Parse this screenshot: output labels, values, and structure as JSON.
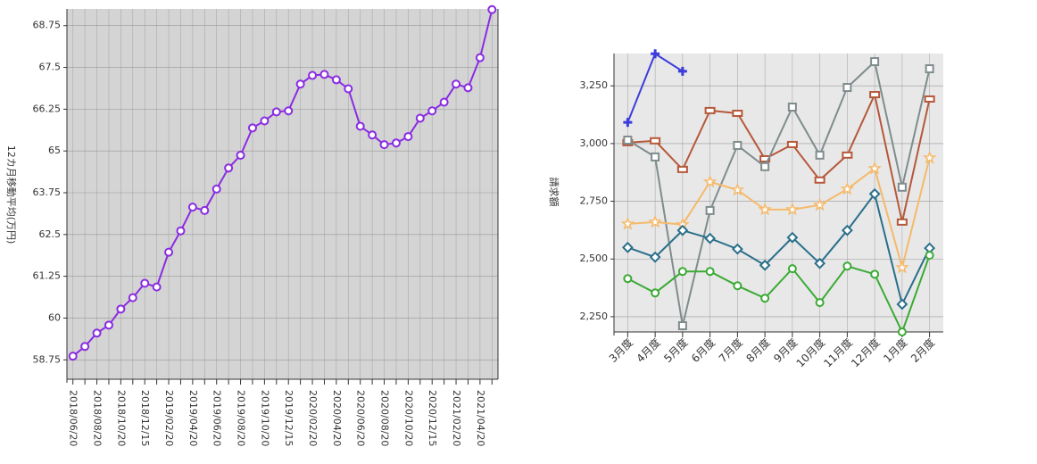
{
  "chart_data": [
    {
      "type": "line",
      "y_label": "12カ月移動平均(万円)",
      "categories": [
        "2018/06/20",
        null,
        "2018/08/20",
        null,
        "2018/10/20",
        null,
        "2018/12/15",
        null,
        "2019/02/20",
        null,
        "2019/04/20",
        null,
        "2019/06/20",
        null,
        "2019/08/20",
        null,
        "2019/10/20",
        null,
        "2019/12/15",
        null,
        "2020/02/20",
        null,
        "2020/04/20",
        null,
        "2020/06/20",
        null,
        "2020/08/20",
        null,
        "2020/10/20",
        null,
        "2020/12/15",
        null,
        "2021/02/20",
        null,
        "2021/04/20",
        null
      ],
      "series": [
        {
          "color": "#8a2be2",
          "marker": "circle",
          "values": [
            58.86,
            59.15,
            59.55,
            59.79,
            60.27,
            60.61,
            61.04,
            60.93,
            61.97,
            62.61,
            63.32,
            63.22,
            63.86,
            64.49,
            64.87,
            65.69,
            65.9,
            66.17,
            66.2,
            67.0,
            67.26,
            67.29,
            67.13,
            66.86,
            65.74,
            65.48,
            65.19,
            65.24,
            65.43,
            65.98,
            66.2,
            66.46,
            67.0,
            66.89,
            67.79,
            69.23
          ]
        }
      ],
      "ylim": [
        58.17,
        69.25
      ],
      "yticks": [
        58.75,
        60,
        61.25,
        62.5,
        63.75,
        65,
        66.25,
        67.5,
        68.75
      ],
      "grid": true,
      "background": "#d4d4d4"
    },
    {
      "type": "line",
      "y_label": "請求額",
      "categories": [
        "3月度",
        "4月度",
        "5月度",
        "6月度",
        "7月度",
        "8月度",
        "9月度",
        "10月度",
        "11月度",
        "12月度",
        "1月度",
        "2月度"
      ],
      "series": [
        {
          "color": "#3c3cdc",
          "marker": "cross",
          "values": [
            3092,
            3389,
            3313,
            null,
            null,
            null,
            null,
            null,
            null,
            null,
            null,
            null
          ]
        },
        {
          "color": "#b5583a",
          "marker": "rect",
          "values": [
            3004,
            3012,
            2888,
            3143,
            3131,
            2934,
            2996,
            2842,
            2950,
            3212,
            2660,
            3193
          ]
        },
        {
          "color": "#7f8c8d",
          "marker": "square",
          "values": [
            3015,
            2942,
            2211,
            2710,
            2992,
            2900,
            3158,
            2950,
            3243,
            3355,
            2811,
            3324
          ]
        },
        {
          "color": "#f5b96a",
          "marker": "star",
          "values": [
            2652,
            2660,
            2649,
            2834,
            2799,
            2714,
            2714,
            2734,
            2803,
            2892,
            2463,
            2938
          ]
        },
        {
          "color": "#2a6f8a",
          "marker": "diamond",
          "values": [
            2550,
            2508,
            2624,
            2589,
            2543,
            2473,
            2593,
            2481,
            2624,
            2782,
            2304,
            2547
          ]
        },
        {
          "color": "#3aaa35",
          "marker": "circle",
          "values": [
            2415,
            2353,
            2446,
            2446,
            2384,
            2330,
            2458,
            2311,
            2469,
            2434,
            2184,
            2516
          ]
        }
      ],
      "ylim": [
        2184,
        3390
      ],
      "yticks": [
        {
          "value": 2250,
          "label": "2,250"
        },
        {
          "value": 2500,
          "label": "2,500"
        },
        {
          "value": 2750,
          "label": "2,750"
        },
        {
          "value": 3000,
          "label": "3,000"
        },
        {
          "value": 3250,
          "label": "3,250"
        }
      ],
      "grid": true,
      "background": "#e8e8e8"
    }
  ]
}
